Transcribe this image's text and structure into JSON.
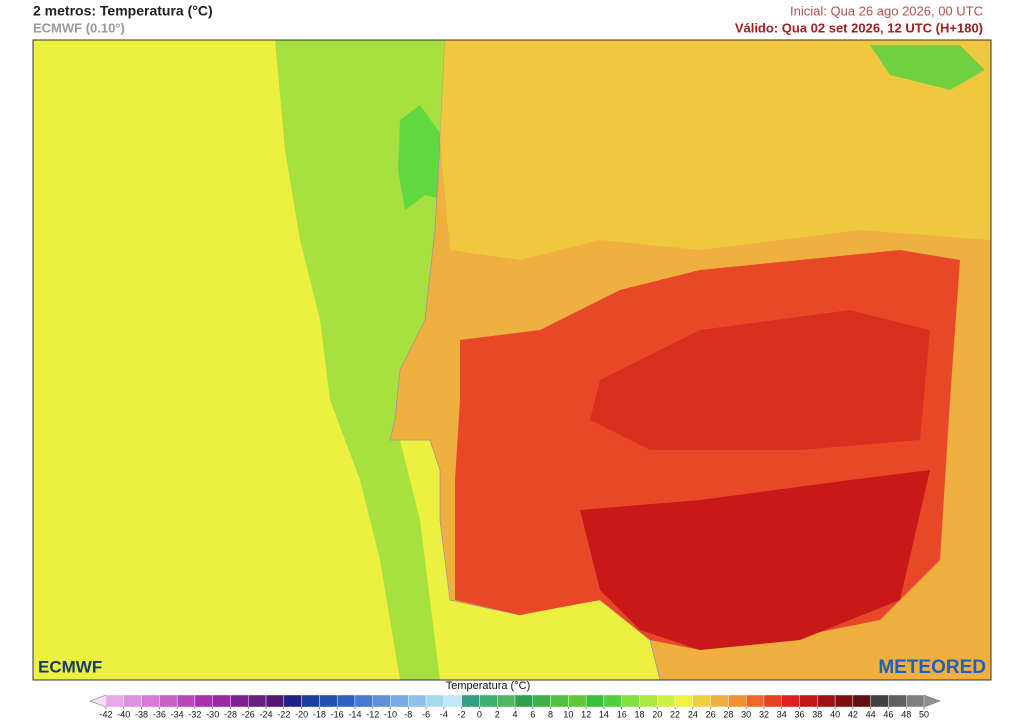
{
  "header": {
    "title": "2 metros: Temperatura (°C)",
    "subtitle": "ECMWF (0.10°)",
    "initial": "Inicial: Qua 26 ago 2026, 00 UTC",
    "valid": "Válido: Qua 02 set 2026, 12 UTC (H+180)"
  },
  "logos": {
    "ecmwf": "ECMWF",
    "meteored": "METEORED"
  },
  "colorbar": {
    "label": "Temperatura (°C)",
    "ticks": [
      -42,
      -40,
      -38,
      -36,
      -34,
      -32,
      -30,
      -28,
      -26,
      -24,
      -22,
      -20,
      -18,
      -16,
      -14,
      -12,
      -10,
      -8,
      -6,
      -4,
      -2,
      0,
      2,
      4,
      6,
      8,
      10,
      12,
      14,
      16,
      18,
      20,
      22,
      24,
      26,
      28,
      30,
      32,
      34,
      36,
      38,
      40,
      42,
      44,
      46,
      48,
      50
    ],
    "colors": [
      "#e8a8e8",
      "#e090e0",
      "#d878d8",
      "#c860c8",
      "#b848b8",
      "#a830a8",
      "#9828a0",
      "#802090",
      "#682080",
      "#501870",
      "#202088",
      "#1840a0",
      "#2050b0",
      "#3060c0",
      "#4878d0",
      "#6090d8",
      "#78a8e0",
      "#90c0e8",
      "#a8d8f0",
      "#c0e8f8",
      "#30a080",
      "#40b070",
      "#50b860",
      "#30a050",
      "#40b048",
      "#50c040",
      "#60c838",
      "#38c038",
      "#50d040",
      "#80e040",
      "#a8e840",
      "#d0f040",
      "#f0f040",
      "#f0d040",
      "#f0b040",
      "#f09030",
      "#f06828",
      "#e84020",
      "#e02020",
      "#c01818",
      "#a01010",
      "#801010",
      "#601010",
      "#404040",
      "#606060",
      "#808080"
    ],
    "under_color": "#f8e0f8",
    "over_color": "#909090"
  }
}
